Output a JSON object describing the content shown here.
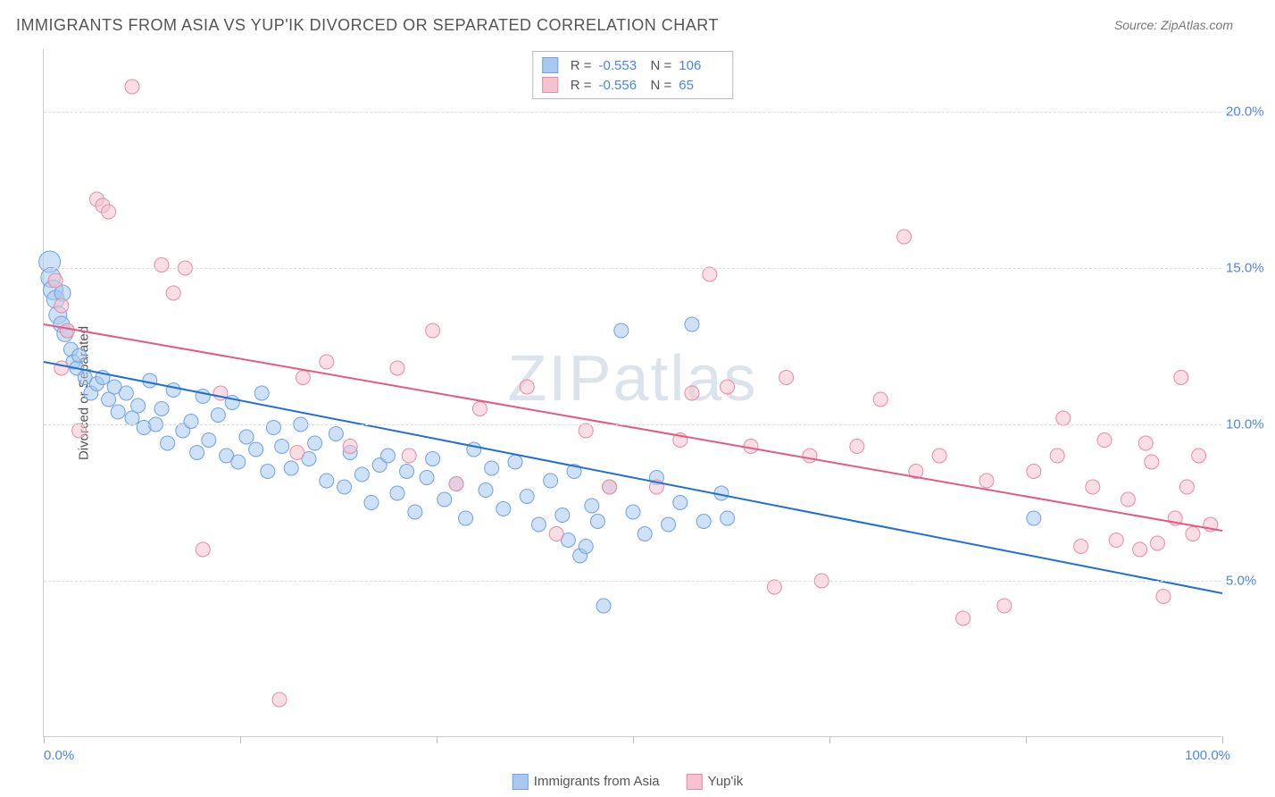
{
  "title": "IMMIGRANTS FROM ASIA VS YUP'IK DIVORCED OR SEPARATED CORRELATION CHART",
  "source": "Source: ZipAtlas.com",
  "watermark": "ZIPatlas",
  "y_axis_title": "Divorced or Separated",
  "chart": {
    "type": "scatter",
    "xlim": [
      0,
      100
    ],
    "ylim": [
      0,
      22
    ],
    "y_ticks": [
      5,
      10,
      15,
      20
    ],
    "y_tick_labels": [
      "5.0%",
      "10.0%",
      "15.0%",
      "20.0%"
    ],
    "x_tick_positions": [
      0,
      16.67,
      33.33,
      50,
      66.67,
      83.33,
      100
    ],
    "x_min_label": "0.0%",
    "x_max_label": "100.0%",
    "grid_color": "#dddddd",
    "background_color": "#ffffff",
    "marker_radius": 8,
    "marker_opacity": 0.55,
    "line_width": 2,
    "series": [
      {
        "name": "Immigrants from Asia",
        "color_fill": "#a8c8f0",
        "color_stroke": "#6fa3e0",
        "line_color": "#1f6fd4",
        "R": "-0.553",
        "N": "106",
        "trend": {
          "x1": 0,
          "y1": 12.0,
          "x2": 100,
          "y2": 4.6
        },
        "points": [
          {
            "x": 0.5,
            "y": 15.2,
            "r": 12
          },
          {
            "x": 0.6,
            "y": 14.7,
            "r": 11
          },
          {
            "x": 0.8,
            "y": 14.3,
            "r": 11
          },
          {
            "x": 1.0,
            "y": 14.0,
            "r": 10
          },
          {
            "x": 1.2,
            "y": 13.5,
            "r": 10
          },
          {
            "x": 1.5,
            "y": 13.2,
            "r": 9
          },
          {
            "x": 1.6,
            "y": 14.2,
            "r": 9
          },
          {
            "x": 1.8,
            "y": 12.9,
            "r": 9
          },
          {
            "x": 2.0,
            "y": 13.0,
            "r": 8
          },
          {
            "x": 2.3,
            "y": 12.4,
            "r": 8
          },
          {
            "x": 2.5,
            "y": 12.0,
            "r": 8
          },
          {
            "x": 2.8,
            "y": 11.8,
            "r": 8
          },
          {
            "x": 3.0,
            "y": 12.2,
            "r": 8
          },
          {
            "x": 3.5,
            "y": 11.5,
            "r": 8
          },
          {
            "x": 4.0,
            "y": 11.0,
            "r": 8
          },
          {
            "x": 4.5,
            "y": 11.3,
            "r": 8
          },
          {
            "x": 5.0,
            "y": 11.5,
            "r": 8
          },
          {
            "x": 5.5,
            "y": 10.8,
            "r": 8
          },
          {
            "x": 6.0,
            "y": 11.2,
            "r": 8
          },
          {
            "x": 6.3,
            "y": 10.4,
            "r": 8
          },
          {
            "x": 7.0,
            "y": 11.0,
            "r": 8
          },
          {
            "x": 7.5,
            "y": 10.2,
            "r": 8
          },
          {
            "x": 8.0,
            "y": 10.6,
            "r": 8
          },
          {
            "x": 8.5,
            "y": 9.9,
            "r": 8
          },
          {
            "x": 9.0,
            "y": 11.4,
            "r": 8
          },
          {
            "x": 9.5,
            "y": 10.0,
            "r": 8
          },
          {
            "x": 10.0,
            "y": 10.5,
            "r": 8
          },
          {
            "x": 10.5,
            "y": 9.4,
            "r": 8
          },
          {
            "x": 11.0,
            "y": 11.1,
            "r": 8
          },
          {
            "x": 11.8,
            "y": 9.8,
            "r": 8
          },
          {
            "x": 12.5,
            "y": 10.1,
            "r": 8
          },
          {
            "x": 13.0,
            "y": 9.1,
            "r": 8
          },
          {
            "x": 13.5,
            "y": 10.9,
            "r": 8
          },
          {
            "x": 14.0,
            "y": 9.5,
            "r": 8
          },
          {
            "x": 14.8,
            "y": 10.3,
            "r": 8
          },
          {
            "x": 15.5,
            "y": 9.0,
            "r": 8
          },
          {
            "x": 16.0,
            "y": 10.7,
            "r": 8
          },
          {
            "x": 16.5,
            "y": 8.8,
            "r": 8
          },
          {
            "x": 17.2,
            "y": 9.6,
            "r": 8
          },
          {
            "x": 18.0,
            "y": 9.2,
            "r": 8
          },
          {
            "x": 18.5,
            "y": 11.0,
            "r": 8
          },
          {
            "x": 19.0,
            "y": 8.5,
            "r": 8
          },
          {
            "x": 19.5,
            "y": 9.9,
            "r": 8
          },
          {
            "x": 20.2,
            "y": 9.3,
            "r": 8
          },
          {
            "x": 21.0,
            "y": 8.6,
            "r": 8
          },
          {
            "x": 21.8,
            "y": 10.0,
            "r": 8
          },
          {
            "x": 22.5,
            "y": 8.9,
            "r": 8
          },
          {
            "x": 23.0,
            "y": 9.4,
            "r": 8
          },
          {
            "x": 24.0,
            "y": 8.2,
            "r": 8
          },
          {
            "x": 24.8,
            "y": 9.7,
            "r": 8
          },
          {
            "x": 25.5,
            "y": 8.0,
            "r": 8
          },
          {
            "x": 26.0,
            "y": 9.1,
            "r": 8
          },
          {
            "x": 27.0,
            "y": 8.4,
            "r": 8
          },
          {
            "x": 27.8,
            "y": 7.5,
            "r": 8
          },
          {
            "x": 28.5,
            "y": 8.7,
            "r": 8
          },
          {
            "x": 29.2,
            "y": 9.0,
            "r": 8
          },
          {
            "x": 30.0,
            "y": 7.8,
            "r": 8
          },
          {
            "x": 30.8,
            "y": 8.5,
            "r": 8
          },
          {
            "x": 31.5,
            "y": 7.2,
            "r": 8
          },
          {
            "x": 32.5,
            "y": 8.3,
            "r": 8
          },
          {
            "x": 33.0,
            "y": 8.9,
            "r": 8
          },
          {
            "x": 34.0,
            "y": 7.6,
            "r": 8
          },
          {
            "x": 35.0,
            "y": 8.1,
            "r": 8
          },
          {
            "x": 35.8,
            "y": 7.0,
            "r": 8
          },
          {
            "x": 36.5,
            "y": 9.2,
            "r": 8
          },
          {
            "x": 37.5,
            "y": 7.9,
            "r": 8
          },
          {
            "x": 38.0,
            "y": 8.6,
            "r": 8
          },
          {
            "x": 39.0,
            "y": 7.3,
            "r": 8
          },
          {
            "x": 40.0,
            "y": 8.8,
            "r": 8
          },
          {
            "x": 41.0,
            "y": 7.7,
            "r": 8
          },
          {
            "x": 42.0,
            "y": 6.8,
            "r": 8
          },
          {
            "x": 43.0,
            "y": 8.2,
            "r": 8
          },
          {
            "x": 44.0,
            "y": 7.1,
            "r": 8
          },
          {
            "x": 44.5,
            "y": 6.3,
            "r": 8
          },
          {
            "x": 45.0,
            "y": 8.5,
            "r": 8
          },
          {
            "x": 45.5,
            "y": 5.8,
            "r": 8
          },
          {
            "x": 46.0,
            "y": 6.1,
            "r": 8
          },
          {
            "x": 46.5,
            "y": 7.4,
            "r": 8
          },
          {
            "x": 47.0,
            "y": 6.9,
            "r": 8
          },
          {
            "x": 47.5,
            "y": 4.2,
            "r": 8
          },
          {
            "x": 48.0,
            "y": 8.0,
            "r": 8
          },
          {
            "x": 49.0,
            "y": 13.0,
            "r": 8
          },
          {
            "x": 50.0,
            "y": 7.2,
            "r": 8
          },
          {
            "x": 51.0,
            "y": 6.5,
            "r": 8
          },
          {
            "x": 52.0,
            "y": 8.3,
            "r": 8
          },
          {
            "x": 53.0,
            "y": 6.8,
            "r": 8
          },
          {
            "x": 54.0,
            "y": 7.5,
            "r": 8
          },
          {
            "x": 55.0,
            "y": 13.2,
            "r": 8
          },
          {
            "x": 56.0,
            "y": 6.9,
            "r": 8
          },
          {
            "x": 57.5,
            "y": 7.8,
            "r": 8
          },
          {
            "x": 58.0,
            "y": 7.0,
            "r": 8
          },
          {
            "x": 84.0,
            "y": 7.0,
            "r": 8
          }
        ]
      },
      {
        "name": "Yup'ik",
        "color_fill": "#f5c2cf",
        "color_stroke": "#e98ba5",
        "line_color": "#e55a82",
        "R": "-0.556",
        "N": "65",
        "trend": {
          "x1": 0,
          "y1": 13.2,
          "x2": 100,
          "y2": 6.6
        },
        "points": [
          {
            "x": 1.0,
            "y": 14.6,
            "r": 8
          },
          {
            "x": 1.5,
            "y": 13.8,
            "r": 8
          },
          {
            "x": 1.5,
            "y": 11.8,
            "r": 8
          },
          {
            "x": 2.0,
            "y": 13.0,
            "r": 8
          },
          {
            "x": 3.0,
            "y": 9.8,
            "r": 8
          },
          {
            "x": 4.5,
            "y": 17.2,
            "r": 8
          },
          {
            "x": 5.0,
            "y": 17.0,
            "r": 8
          },
          {
            "x": 5.5,
            "y": 16.8,
            "r": 8
          },
          {
            "x": 7.5,
            "y": 20.8,
            "r": 8
          },
          {
            "x": 10.0,
            "y": 15.1,
            "r": 8
          },
          {
            "x": 11.0,
            "y": 14.2,
            "r": 8
          },
          {
            "x": 12.0,
            "y": 15.0,
            "r": 8
          },
          {
            "x": 13.5,
            "y": 6.0,
            "r": 8
          },
          {
            "x": 15.0,
            "y": 11.0,
            "r": 8
          },
          {
            "x": 20.0,
            "y": 1.2,
            "r": 8
          },
          {
            "x": 21.5,
            "y": 9.1,
            "r": 8
          },
          {
            "x": 22.0,
            "y": 11.5,
            "r": 8
          },
          {
            "x": 24.0,
            "y": 12.0,
            "r": 8
          },
          {
            "x": 26.0,
            "y": 9.3,
            "r": 8
          },
          {
            "x": 30.0,
            "y": 11.8,
            "r": 8
          },
          {
            "x": 31.0,
            "y": 9.0,
            "r": 8
          },
          {
            "x": 33.0,
            "y": 13.0,
            "r": 8
          },
          {
            "x": 35.0,
            "y": 8.1,
            "r": 8
          },
          {
            "x": 37.0,
            "y": 10.5,
            "r": 8
          },
          {
            "x": 41.0,
            "y": 11.2,
            "r": 8
          },
          {
            "x": 43.5,
            "y": 6.5,
            "r": 8
          },
          {
            "x": 46.0,
            "y": 9.8,
            "r": 8
          },
          {
            "x": 48.0,
            "y": 8.0,
            "r": 8
          },
          {
            "x": 52.0,
            "y": 8.0,
            "r": 8
          },
          {
            "x": 54.0,
            "y": 9.5,
            "r": 8
          },
          {
            "x": 55.0,
            "y": 11.0,
            "r": 8
          },
          {
            "x": 56.5,
            "y": 14.8,
            "r": 8
          },
          {
            "x": 58.0,
            "y": 11.2,
            "r": 8
          },
          {
            "x": 60.0,
            "y": 9.3,
            "r": 8
          },
          {
            "x": 62.0,
            "y": 4.8,
            "r": 8
          },
          {
            "x": 63.0,
            "y": 11.5,
            "r": 8
          },
          {
            "x": 65.0,
            "y": 9.0,
            "r": 8
          },
          {
            "x": 66.0,
            "y": 5.0,
            "r": 8
          },
          {
            "x": 69.0,
            "y": 9.3,
            "r": 8
          },
          {
            "x": 71.0,
            "y": 10.8,
            "r": 8
          },
          {
            "x": 73.0,
            "y": 16.0,
            "r": 8
          },
          {
            "x": 74.0,
            "y": 8.5,
            "r": 8
          },
          {
            "x": 76.0,
            "y": 9.0,
            "r": 8
          },
          {
            "x": 78.0,
            "y": 3.8,
            "r": 8
          },
          {
            "x": 80.0,
            "y": 8.2,
            "r": 8
          },
          {
            "x": 81.5,
            "y": 4.2,
            "r": 8
          },
          {
            "x": 84.0,
            "y": 8.5,
            "r": 8
          },
          {
            "x": 86.0,
            "y": 9.0,
            "r": 8
          },
          {
            "x": 86.5,
            "y": 10.2,
            "r": 8
          },
          {
            "x": 88.0,
            "y": 6.1,
            "r": 8
          },
          {
            "x": 89.0,
            "y": 8.0,
            "r": 8
          },
          {
            "x": 90.0,
            "y": 9.5,
            "r": 8
          },
          {
            "x": 91.0,
            "y": 6.3,
            "r": 8
          },
          {
            "x": 92.0,
            "y": 7.6,
            "r": 8
          },
          {
            "x": 93.0,
            "y": 6.0,
            "r": 8
          },
          {
            "x": 93.5,
            "y": 9.4,
            "r": 8
          },
          {
            "x": 94.0,
            "y": 8.8,
            "r": 8
          },
          {
            "x": 94.5,
            "y": 6.2,
            "r": 8
          },
          {
            "x": 95.0,
            "y": 4.5,
            "r": 8
          },
          {
            "x": 96.0,
            "y": 7.0,
            "r": 8
          },
          {
            "x": 96.5,
            "y": 11.5,
            "r": 8
          },
          {
            "x": 97.0,
            "y": 8.0,
            "r": 8
          },
          {
            "x": 97.5,
            "y": 6.5,
            "r": 8
          },
          {
            "x": 98.0,
            "y": 9.0,
            "r": 8
          },
          {
            "x": 99.0,
            "y": 6.8,
            "r": 8
          }
        ]
      }
    ]
  },
  "legend": {
    "stat_R_label": "R =",
    "stat_N_label": "N ="
  }
}
